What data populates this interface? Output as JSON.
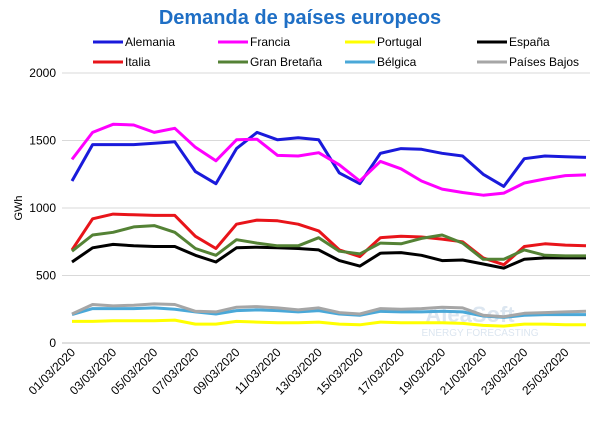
{
  "chart_data": {
    "type": "line",
    "title": "Demanda de países europeos",
    "y_label": "GWh",
    "watermark": [
      "AleaSoft",
      "ENERGY FORECASTING"
    ],
    "categories": [
      "01/03/2020",
      null,
      "03/03/2020",
      null,
      "05/03/2020",
      null,
      "07/03/2020",
      null,
      "09/03/2020",
      null,
      "11/03/2020",
      null,
      "13/03/2020",
      null,
      "15/03/2020",
      null,
      "17/03/2020",
      null,
      "19/03/2020",
      null,
      "21/03/2020",
      null,
      "23/03/2020",
      null,
      "25/03/2020",
      null
    ],
    "ylim": [
      0,
      2000
    ],
    "yticks": [
      0,
      500,
      1000,
      1500,
      2000
    ],
    "grid": true,
    "series": [
      {
        "name": "Alemania",
        "color": "#1a1adb",
        "values": [
          1200,
          1470,
          1470,
          1470,
          1480,
          1490,
          1270,
          1180,
          1440,
          1560,
          1505,
          1520,
          1505,
          1260,
          1180,
          1405,
          1440,
          1435,
          1405,
          1385,
          1250,
          1160,
          1365,
          1385,
          1380,
          1375
        ]
      },
      {
        "name": "Francia",
        "color": "#ff00ff",
        "values": [
          1360,
          1560,
          1620,
          1615,
          1560,
          1590,
          1450,
          1350,
          1505,
          1510,
          1390,
          1385,
          1410,
          1320,
          1200,
          1345,
          1290,
          1200,
          1140,
          1115,
          1095,
          1110,
          1185,
          1215,
          1240,
          1245
        ]
      },
      {
        "name": "Portugal",
        "color": "#ffff00",
        "values": [
          160,
          160,
          165,
          165,
          165,
          170,
          140,
          140,
          160,
          155,
          150,
          150,
          155,
          140,
          135,
          155,
          150,
          150,
          150,
          145,
          130,
          125,
          140,
          140,
          135,
          135
        ]
      },
      {
        "name": "España",
        "color": "#000000",
        "values": [
          600,
          705,
          730,
          720,
          715,
          715,
          650,
          600,
          705,
          710,
          705,
          700,
          690,
          610,
          570,
          665,
          670,
          650,
          610,
          615,
          585,
          555,
          620,
          630,
          630,
          630
        ]
      },
      {
        "name": "Italia",
        "color": "#e8141a",
        "values": [
          690,
          920,
          955,
          950,
          945,
          945,
          790,
          700,
          880,
          910,
          905,
          880,
          830,
          690,
          640,
          780,
          790,
          785,
          770,
          750,
          630,
          580,
          715,
          735,
          725,
          720
        ]
      },
      {
        "name": "Gran Bretaña",
        "color": "#548235",
        "values": [
          680,
          800,
          820,
          860,
          870,
          820,
          700,
          650,
          765,
          740,
          720,
          720,
          780,
          680,
          660,
          740,
          735,
          775,
          800,
          740,
          620,
          620,
          690,
          650,
          645,
          645
        ]
      },
      {
        "name": "Bélgica",
        "color": "#4aa8d8",
        "values": [
          210,
          255,
          255,
          255,
          260,
          250,
          230,
          215,
          240,
          245,
          240,
          230,
          240,
          215,
          205,
          235,
          230,
          230,
          235,
          230,
          200,
          190,
          205,
          210,
          210,
          210
        ]
      },
      {
        "name": "Países Bajos",
        "color": "#a6a6a6",
        "values": [
          215,
          285,
          275,
          280,
          290,
          285,
          235,
          230,
          265,
          270,
          260,
          245,
          260,
          225,
          215,
          255,
          250,
          255,
          265,
          260,
          205,
          195,
          220,
          225,
          230,
          235
        ]
      }
    ]
  }
}
